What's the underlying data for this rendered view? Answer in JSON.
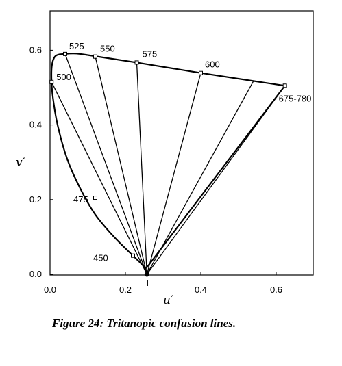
{
  "caption": "Figure 24:  Tritanopic confusion lines.",
  "chart_data": {
    "type": "line",
    "xlabel": "u′",
    "ylabel": "v′",
    "xlim": [
      0,
      0.7
    ],
    "ylim": [
      0,
      0.7
    ],
    "x_ticks": [
      {
        "value": 0.0,
        "label": "0.0"
      },
      {
        "value": 0.2,
        "label": "0.2"
      },
      {
        "value": 0.4,
        "label": "0.4"
      },
      {
        "value": 0.6,
        "label": "0.6"
      }
    ],
    "y_ticks": [
      {
        "value": 0.0,
        "label": "0.0"
      },
      {
        "value": 0.2,
        "label": "0.2"
      },
      {
        "value": 0.4,
        "label": "0.4"
      },
      {
        "value": 0.6,
        "label": "0.6"
      }
    ],
    "spectrum_locus": [
      [
        0.255,
        0.016
      ],
      [
        0.22,
        0.05
      ],
      [
        0.17,
        0.1
      ],
      [
        0.12,
        0.16
      ],
      [
        0.08,
        0.23
      ],
      [
        0.045,
        0.31
      ],
      [
        0.02,
        0.4
      ],
      [
        0.008,
        0.47
      ],
      [
        0.004,
        0.515
      ],
      [
        0.005,
        0.56
      ],
      [
        0.015,
        0.585
      ],
      [
        0.04,
        0.59
      ],
      [
        0.07,
        0.591
      ],
      [
        0.1,
        0.587
      ]
    ],
    "purple_line": [
      [
        0.255,
        0.016
      ],
      [
        0.623,
        0.505
      ]
    ],
    "upper_locus": [
      [
        0.1,
        0.587
      ],
      [
        0.23,
        0.567
      ],
      [
        0.4,
        0.539
      ],
      [
        0.623,
        0.505
      ]
    ],
    "copunctal_point": {
      "label": "T",
      "u": 0.257,
      "v": 0.0
    },
    "wavelength_markers": [
      {
        "label": "450",
        "u": 0.22,
        "v": 0.05
      },
      {
        "label": "475",
        "u": 0.12,
        "v": 0.205
      },
      {
        "label": "500",
        "u": 0.004,
        "v": 0.515
      },
      {
        "label": "525",
        "u": 0.04,
        "v": 0.59
      },
      {
        "label": "550",
        "u": 0.12,
        "v": 0.583
      },
      {
        "label": "575",
        "u": 0.23,
        "v": 0.567
      },
      {
        "label": "600",
        "u": 0.4,
        "v": 0.539
      },
      {
        "label": "675-780",
        "u": 0.623,
        "v": 0.505
      }
    ],
    "confusion_line_endpoints": [
      [
        0.004,
        0.515
      ],
      [
        0.04,
        0.59
      ],
      [
        0.12,
        0.583
      ],
      [
        0.23,
        0.567
      ],
      [
        0.4,
        0.539
      ],
      [
        0.54,
        0.518
      ],
      [
        0.623,
        0.505
      ]
    ]
  }
}
